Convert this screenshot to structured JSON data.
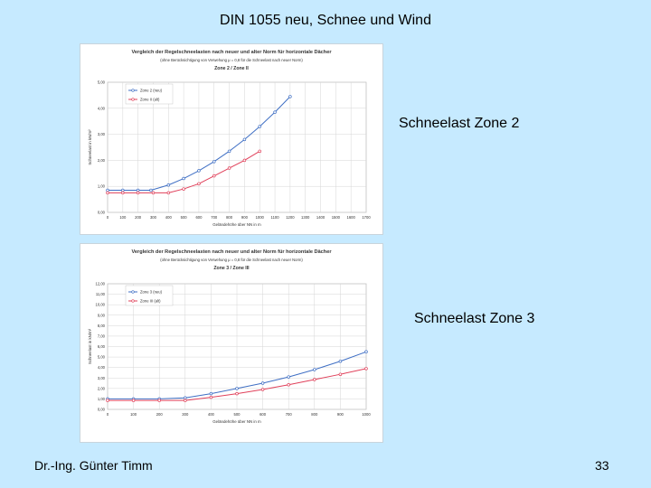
{
  "slide": {
    "title": "DIN 1055 neu, Schnee und Wind",
    "label_zone2": "Schneelast Zone 2",
    "label_zone3": "Schneelast Zone 3",
    "footer": "Dr.-Ing. Günter Timm",
    "page_number": "33"
  },
  "colors": {
    "background": "#c6eaff",
    "series_new": "#3f6fc4",
    "series_old": "#e0405a"
  },
  "chart_data": [
    {
      "type": "line",
      "title": "Vergleich der Regelschneelasten nach neuer und alter Norm für horizontale Dächer",
      "subtitle": "(ohne Berücksichtigung von Verwehung μ = 0,8 für die Schneelast nach neuer Norm)",
      "subtitle2": "Zone 2 / Zone II",
      "xlabel": "Geländehöhe über NN in m",
      "ylabel": "Schneelast in kN/m²",
      "xlim": [
        0,
        1700
      ],
      "ylim": [
        0,
        5
      ],
      "x_ticks": [
        "0",
        "100",
        "200",
        "300",
        "400",
        "500",
        "600",
        "700",
        "800",
        "900",
        "1000",
        "1100",
        "1200",
        "1300",
        "1400",
        "1500",
        "1600",
        "1700"
      ],
      "y_ticks": [
        "0,00",
        "1,00",
        "2,00",
        "3,00",
        "4,00",
        "5,00"
      ],
      "grid": true,
      "legend_position": "top-left",
      "series": [
        {
          "name": "Zone 2 (neu)",
          "color": "#3f6fc4",
          "x": [
            0,
            100,
            200,
            285,
            400,
            500,
            600,
            700,
            800,
            900,
            1000,
            1100,
            1200
          ],
          "y": [
            0.85,
            0.85,
            0.85,
            0.85,
            1.05,
            1.3,
            1.6,
            1.95,
            2.35,
            2.8,
            3.3,
            3.85,
            4.45
          ]
        },
        {
          "name": "Zone II (alt)",
          "color": "#e0405a",
          "x": [
            0,
            100,
            200,
            300,
            400,
            500,
            600,
            700,
            800,
            900,
            1000
          ],
          "y": [
            0.75,
            0.75,
            0.75,
            0.75,
            0.75,
            0.9,
            1.1,
            1.4,
            1.7,
            2.0,
            2.35
          ]
        }
      ]
    },
    {
      "type": "line",
      "title": "Vergleich der Regelschneelasten nach neuer und alter Norm für horizontale Dächer",
      "subtitle": "(ohne Berücksichtigung von Verwehung μ = 0,8 für die Schneelast nach neuer Norm)",
      "subtitle2": "Zone 3 / Zone III",
      "xlabel": "Geländehöhe über NN in m",
      "ylabel": "Schneelast in kN/m²",
      "xlim": [
        0,
        1000
      ],
      "ylim": [
        0,
        12
      ],
      "x_ticks": [
        "0",
        "100",
        "200",
        "300",
        "400",
        "500",
        "600",
        "700",
        "800",
        "900",
        "1000"
      ],
      "y_ticks": [
        "0,00",
        "1,00",
        "2,00",
        "3,00",
        "4,00",
        "5,00",
        "6,00",
        "7,00",
        "8,00",
        "9,00",
        "10,00",
        "11,00",
        "12,00"
      ],
      "grid": true,
      "legend_position": "top-left",
      "series": [
        {
          "name": "Zone 3 (neu)",
          "color": "#3f6fc4",
          "x": [
            0,
            100,
            200,
            300,
            400,
            500,
            600,
            700,
            800,
            900,
            1000
          ],
          "y": [
            1.0,
            1.0,
            1.0,
            1.1,
            1.5,
            2.0,
            2.5,
            3.1,
            3.8,
            4.6,
            5.5
          ]
        },
        {
          "name": "Zone III (alt)",
          "color": "#e0405a",
          "x": [
            0,
            100,
            200,
            300,
            400,
            500,
            600,
            700,
            800,
            900,
            1000
          ],
          "y": [
            0.85,
            0.85,
            0.85,
            0.85,
            1.15,
            1.5,
            1.9,
            2.35,
            2.85,
            3.35,
            3.9
          ]
        }
      ]
    }
  ]
}
